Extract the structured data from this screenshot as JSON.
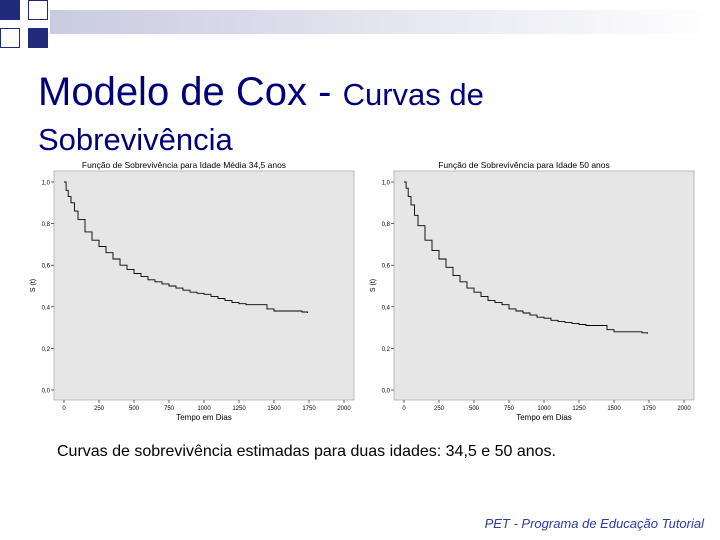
{
  "slide": {
    "title_main": "Modelo de Cox - ",
    "title_rest": "Curvas de",
    "title_line2": "Sobrevivência",
    "caption": "Curvas de sobrevivência estimadas para duas idades: 34,5 e 50 anos.",
    "footer": "PET - Programa de Educação Tutorial",
    "title_color": "#00007a",
    "accent_color": "#1f2a7a",
    "plot_background": "#e6e6e6"
  },
  "chart_data": [
    {
      "type": "line",
      "title": "Função de Sobrevivência para Idade Média 34,5 anos",
      "xlabel": "Tempo em Dias",
      "ylabel": "S (t)",
      "xlim": [
        0,
        2000
      ],
      "ylim": [
        0,
        1
      ],
      "xticks": [
        "0",
        "250",
        "500",
        "750",
        "1000",
        "1250",
        "1500",
        "1750",
        "2000"
      ],
      "yticks": [
        "0,0",
        "0,2",
        "0,4",
        "0,6",
        "0,8",
        "1,0"
      ],
      "grid": false,
      "series": [
        {
          "x": [
            0,
            15,
            30,
            50,
            75,
            100,
            150,
            200,
            250,
            300,
            350,
            400,
            450,
            500,
            550,
            600,
            650,
            700,
            750,
            800,
            850,
            900,
            950,
            1000,
            1050,
            1100,
            1150,
            1200,
            1250,
            1300,
            1350,
            1400,
            1450,
            1500,
            1550,
            1600,
            1650,
            1700,
            1740
          ],
          "y": [
            1.0,
            0.96,
            0.93,
            0.9,
            0.86,
            0.82,
            0.76,
            0.72,
            0.69,
            0.66,
            0.63,
            0.6,
            0.58,
            0.56,
            0.545,
            0.53,
            0.52,
            0.51,
            0.5,
            0.49,
            0.48,
            0.47,
            0.465,
            0.46,
            0.45,
            0.44,
            0.43,
            0.42,
            0.415,
            0.41,
            0.41,
            0.41,
            0.39,
            0.38,
            0.38,
            0.38,
            0.38,
            0.375,
            0.37
          ],
          "color": "#000000"
        }
      ]
    },
    {
      "type": "line",
      "title": "Função de Sobrevivência para Idade 50 anos",
      "xlabel": "Tempo em Dias",
      "ylabel": "S (t)",
      "xlim": [
        0,
        2000
      ],
      "ylim": [
        0,
        1
      ],
      "xticks": [
        "0",
        "250",
        "500",
        "750",
        "1000",
        "1250",
        "1500",
        "1750",
        "2000"
      ],
      "yticks": [
        "0,0",
        "0,2",
        "0,4",
        "0,6",
        "0,8",
        "1,0"
      ],
      "grid": false,
      "series": [
        {
          "x": [
            0,
            15,
            30,
            50,
            75,
            100,
            150,
            200,
            250,
            300,
            350,
            400,
            450,
            500,
            550,
            600,
            650,
            700,
            750,
            800,
            850,
            900,
            950,
            1000,
            1050,
            1100,
            1150,
            1200,
            1250,
            1300,
            1350,
            1400,
            1450,
            1500,
            1550,
            1600,
            1650,
            1700,
            1740
          ],
          "y": [
            1.0,
            0.97,
            0.93,
            0.89,
            0.84,
            0.79,
            0.72,
            0.67,
            0.63,
            0.59,
            0.55,
            0.52,
            0.49,
            0.47,
            0.45,
            0.43,
            0.42,
            0.41,
            0.39,
            0.38,
            0.37,
            0.36,
            0.35,
            0.345,
            0.335,
            0.33,
            0.325,
            0.32,
            0.315,
            0.31,
            0.31,
            0.31,
            0.29,
            0.28,
            0.28,
            0.28,
            0.28,
            0.275,
            0.27
          ],
          "color": "#000000"
        }
      ]
    }
  ]
}
